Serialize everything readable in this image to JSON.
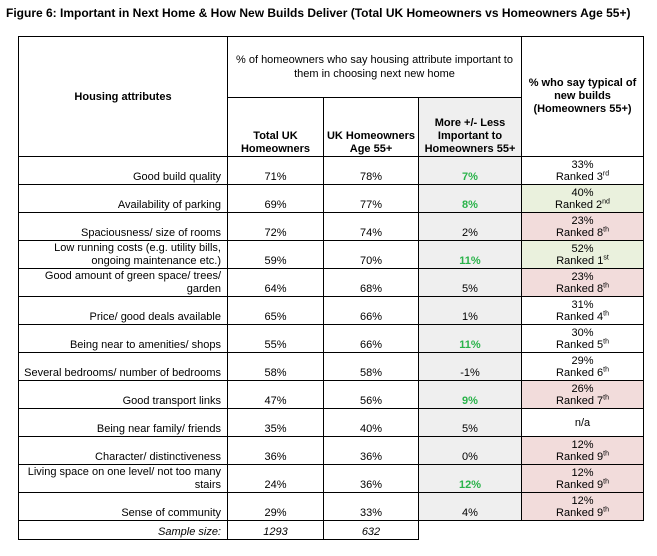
{
  "title": "Figure 6:  Important in Next Home & How New Builds Deliver (Total UK Homeowners vs Homeowners Age 55+)",
  "header": {
    "attr_label": "Housing attributes",
    "group_label": "% of homeowners who say housing attribute important to them in choosing next new home",
    "col_total": "Total UK Homeowners",
    "col_55": "UK Homeowners Age 55+",
    "col_diff": "More +/- Less Important to Homeowners 55+",
    "col_typical": "% who say typical of new builds (Homeowners 55+)"
  },
  "rows": [
    {
      "attr": "Good build quality",
      "total": "71%",
      "age55": "78%",
      "diff": "7%",
      "diff_green": true,
      "typ_pct": "33%",
      "rank_prefix": "Ranked 3",
      "rank_sup": "rd",
      "shade": ""
    },
    {
      "attr": "Availability of parking",
      "total": "69%",
      "age55": "77%",
      "diff": "8%",
      "diff_green": true,
      "typ_pct": "40%",
      "rank_prefix": "Ranked 2",
      "rank_sup": "nd",
      "shade": "g"
    },
    {
      "attr": "Spaciousness/ size of rooms",
      "total": "72%",
      "age55": "74%",
      "diff": "2%",
      "diff_green": false,
      "typ_pct": "23%",
      "rank_prefix": "Ranked 8",
      "rank_sup": "th",
      "shade": "r"
    },
    {
      "attr": "Low running costs (e.g. utility bills, ongoing maintenance etc.)",
      "total": "59%",
      "age55": "70%",
      "diff": "11%",
      "diff_green": true,
      "typ_pct": "52%",
      "rank_prefix": "Ranked 1",
      "rank_sup": "st",
      "shade": "g"
    },
    {
      "attr": "Good amount of green space/ trees/ garden",
      "total": "64%",
      "age55": "68%",
      "diff": "5%",
      "diff_green": false,
      "typ_pct": "23%",
      "rank_prefix": "Ranked 8",
      "rank_sup": "th",
      "shade": "r"
    },
    {
      "attr": "Price/ good deals available",
      "total": "65%",
      "age55": "66%",
      "diff": "1%",
      "diff_green": false,
      "typ_pct": "31%",
      "rank_prefix": "Ranked 4",
      "rank_sup": "th",
      "shade": ""
    },
    {
      "attr": "Being near to amenities/ shops",
      "total": "55%",
      "age55": "66%",
      "diff": "11%",
      "diff_green": true,
      "typ_pct": "30%",
      "rank_prefix": "Ranked 5",
      "rank_sup": "th",
      "shade": ""
    },
    {
      "attr": "Several bedrooms/ number of bedrooms",
      "total": "58%",
      "age55": "58%",
      "diff": "-1%",
      "diff_green": false,
      "typ_pct": "29%",
      "rank_prefix": "Ranked 6",
      "rank_sup": "th",
      "shade": ""
    },
    {
      "attr": "Good transport links",
      "total": "47%",
      "age55": "56%",
      "diff": "9%",
      "diff_green": true,
      "typ_pct": "26%",
      "rank_prefix": "Ranked 7",
      "rank_sup": "th",
      "shade": "r"
    },
    {
      "attr": "Being near family/ friends",
      "total": "35%",
      "age55": "40%",
      "diff": "5%",
      "diff_green": false,
      "typ_pct": "n/a",
      "rank_prefix": "",
      "rank_sup": "",
      "shade": ""
    },
    {
      "attr": "Character/ distinctiveness",
      "total": "36%",
      "age55": "36%",
      "diff": "0%",
      "diff_green": false,
      "typ_pct": "12%",
      "rank_prefix": "Ranked 9",
      "rank_sup": "th",
      "shade": "r"
    },
    {
      "attr": "Living space on one level/ not too many stairs",
      "total": "24%",
      "age55": "36%",
      "diff": "12%",
      "diff_green": true,
      "typ_pct": "12%",
      "rank_prefix": "Ranked 9",
      "rank_sup": "th",
      "shade": "r"
    },
    {
      "attr": "Sense of community",
      "total": "29%",
      "age55": "33%",
      "diff": "4%",
      "diff_green": false,
      "typ_pct": "12%",
      "rank_prefix": "Ranked 9",
      "rank_sup": "th",
      "shade": "r"
    }
  ],
  "sample": {
    "label": "Sample size:",
    "total": "1293",
    "age55": "632"
  }
}
